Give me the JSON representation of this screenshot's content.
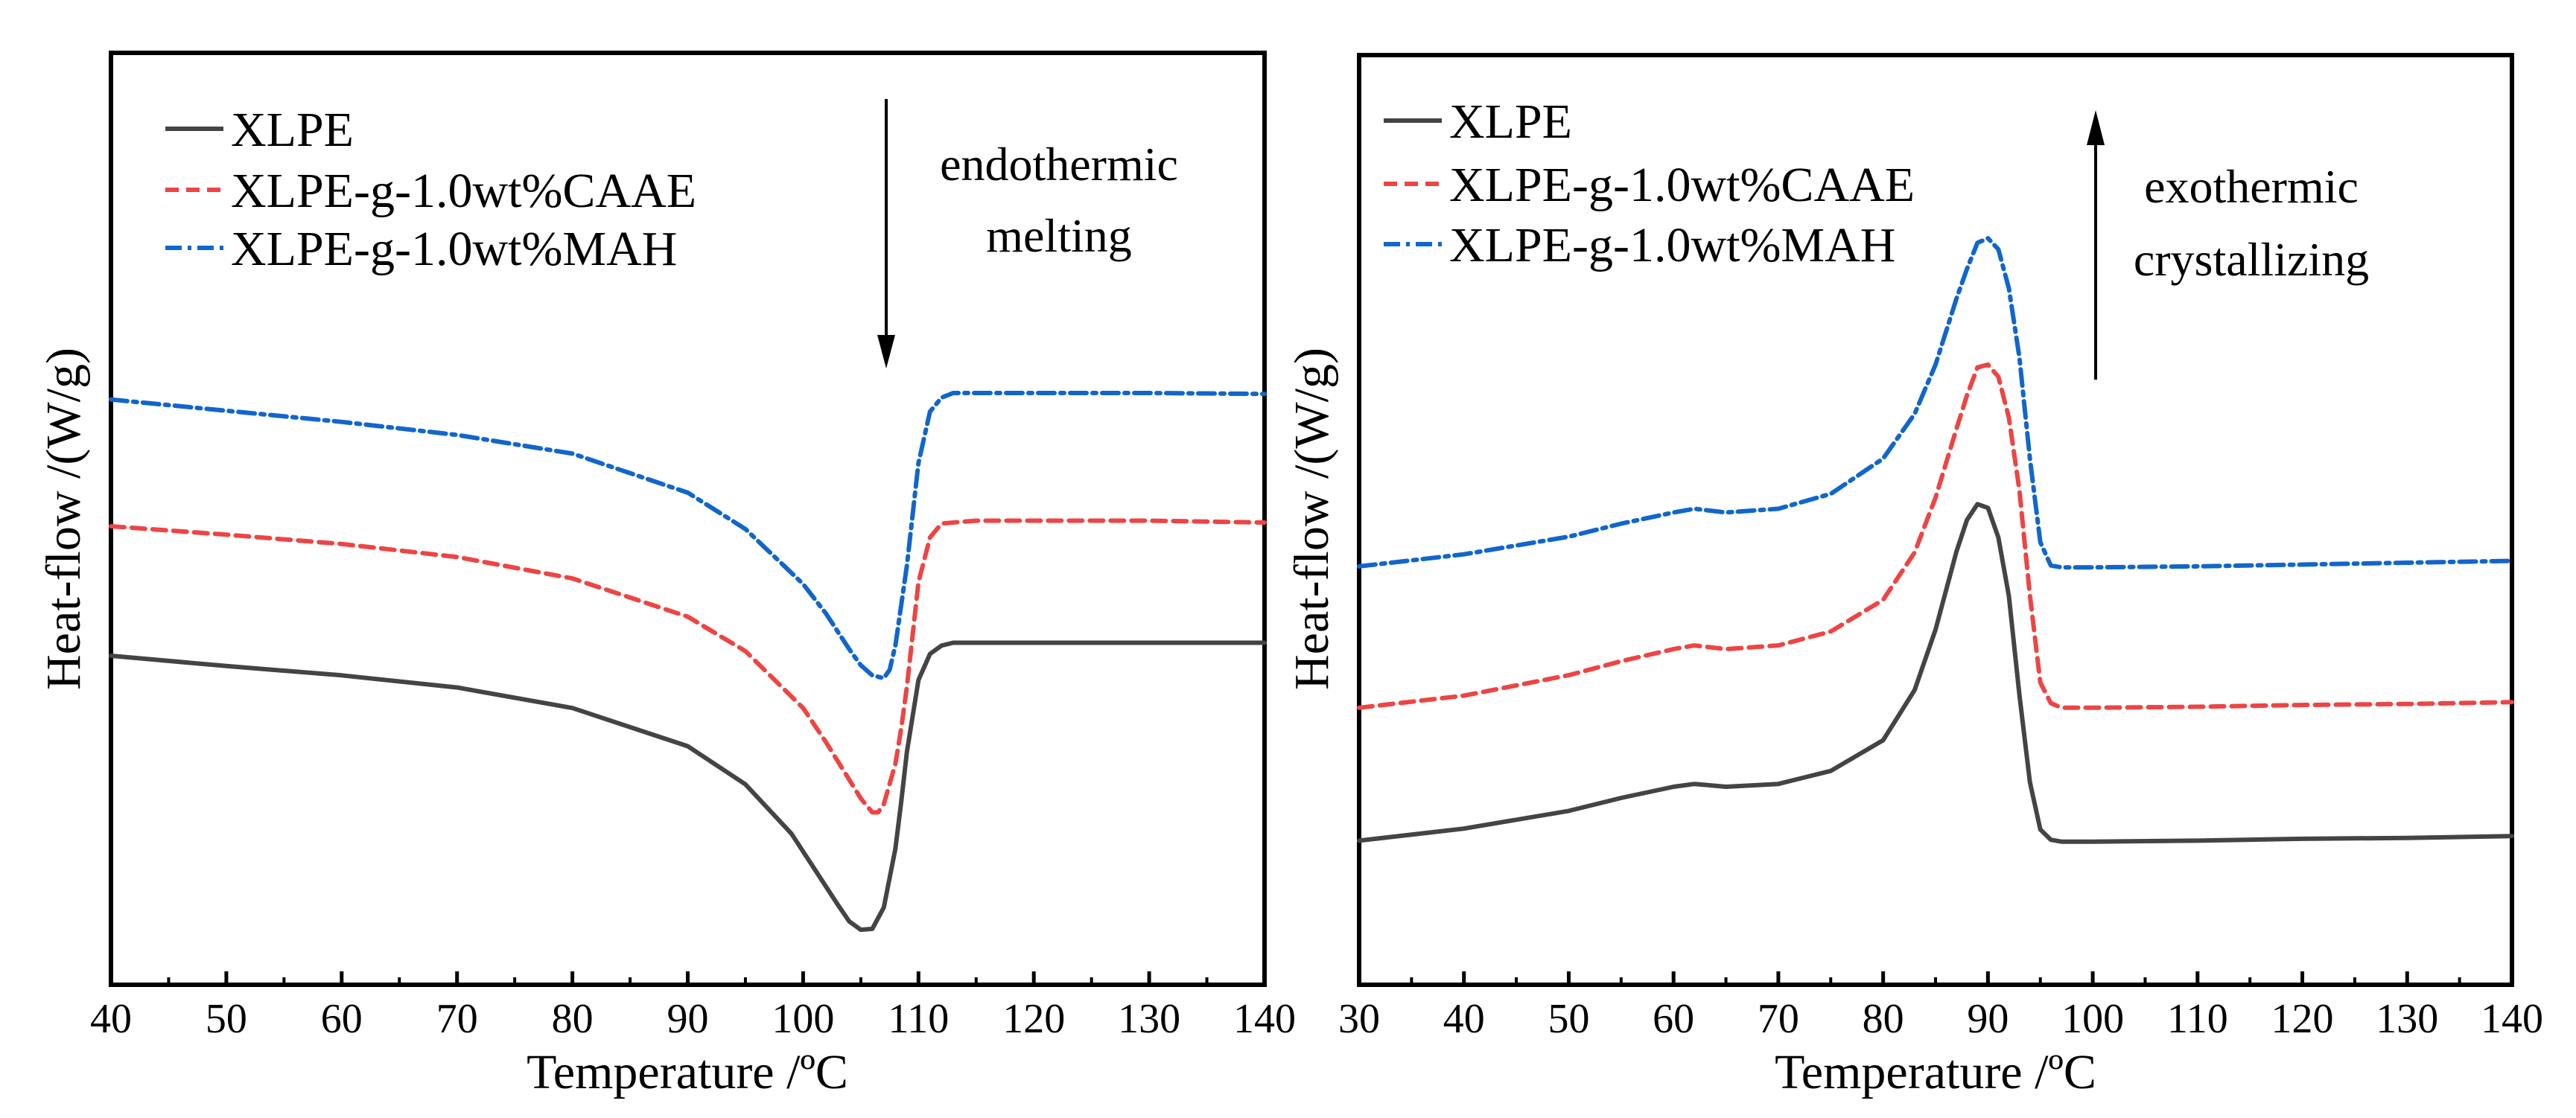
{
  "chart_data": [
    {
      "type": "line",
      "id": "melting",
      "title": "",
      "xlabel": "Temperature /ºC",
      "ylabel": "Heat-flow /(W/g)",
      "xlim": [
        40,
        140
      ],
      "xticks": [
        40,
        50,
        60,
        70,
        80,
        90,
        100,
        110,
        120,
        130,
        140
      ],
      "ylim": [
        0,
        100
      ],
      "y_ticks_shown": false,
      "grid": false,
      "legend_position": "top-left",
      "annotation": {
        "lines": [
          "endothermic",
          "melting"
        ],
        "arrow": "down"
      },
      "series": [
        {
          "name": "XLPE",
          "color": "#444444",
          "style": "solid",
          "x": [
            40,
            50,
            60,
            70,
            80,
            90,
            95,
            99,
            101,
            103,
            104,
            105,
            106,
            107,
            108,
            108.5,
            109,
            110,
            111,
            112,
            113,
            115,
            120,
            130,
            140
          ],
          "y": [
            35.3,
            34.2,
            33.2,
            31.9,
            29.7,
            25.6,
            21.5,
            16.2,
            12.4,
            8.6,
            6.8,
            5.9,
            6.0,
            8.3,
            14.6,
            19.6,
            25.0,
            32.7,
            35.5,
            36.4,
            36.7,
            36.7,
            36.7,
            36.7,
            36.7
          ]
        },
        {
          "name": "XLPE-g-1.0wt%CAAE",
          "color": "#ee4444",
          "style": "dashed",
          "x": [
            40,
            50,
            60,
            70,
            80,
            90,
            95,
            100,
            102,
            104,
            105,
            106,
            106.5,
            107,
            108,
            108.5,
            109,
            110,
            111,
            112,
            115,
            120,
            130,
            140
          ],
          "y": [
            49.2,
            48.3,
            47.3,
            45.9,
            43.6,
            39.5,
            35.8,
            29.7,
            26.0,
            22.0,
            20.0,
            18.5,
            18.5,
            19.4,
            23.7,
            27.5,
            32.0,
            43.2,
            48.0,
            49.5,
            49.8,
            49.8,
            49.8,
            49.6
          ]
        },
        {
          "name": "XLPE-g-1.0wt%MAH",
          "color": "#1166cc",
          "style": "dashdot",
          "x": [
            40,
            50,
            60,
            70,
            80,
            90,
            95,
            100,
            102,
            104,
            105,
            106,
            107,
            107.5,
            108,
            109,
            110,
            111,
            112,
            113,
            115,
            120,
            130,
            140
          ],
          "y": [
            62.8,
            61.6,
            60.4,
            59.0,
            57.0,
            52.8,
            48.9,
            43.0,
            39.8,
            36.0,
            34.3,
            33.2,
            32.9,
            33.8,
            36.4,
            45.0,
            56.0,
            61.5,
            63.0,
            63.5,
            63.5,
            63.5,
            63.5,
            63.4
          ]
        }
      ]
    },
    {
      "type": "line",
      "id": "crystallization",
      "title": "",
      "xlabel": "Temperature /ºC",
      "ylabel": "Heat-flow /(W/g)",
      "xlim": [
        30,
        140
      ],
      "xticks": [
        30,
        40,
        50,
        60,
        70,
        80,
        90,
        100,
        110,
        120,
        130,
        140
      ],
      "ylim": [
        0,
        100
      ],
      "y_ticks_shown": false,
      "grid": false,
      "legend_position": "top-left",
      "annotation": {
        "lines": [
          "exothermic",
          "crystallizing"
        ],
        "arrow": "up"
      },
      "series": [
        {
          "name": "XLPE",
          "color": "#444444",
          "style": "solid",
          "x": [
            30,
            40,
            50,
            55,
            60,
            62,
            65,
            70,
            75,
            80,
            83,
            85,
            87,
            88,
            89,
            90,
            91,
            92,
            93,
            94,
            95,
            96,
            97,
            100,
            110,
            120,
            130,
            140
          ],
          "y": [
            15.5,
            16.8,
            18.7,
            20.1,
            21.3,
            21.6,
            21.3,
            21.6,
            23.0,
            26.3,
            31.7,
            38.2,
            46.6,
            50.0,
            51.7,
            51.3,
            48.1,
            41.8,
            31.2,
            21.8,
            16.7,
            15.6,
            15.4,
            15.4,
            15.5,
            15.7,
            15.8,
            16.0
          ]
        },
        {
          "name": "XLPE-g-1.0wt%CAAE",
          "color": "#ee4444",
          "style": "dashed",
          "x": [
            30,
            40,
            50,
            55,
            60,
            62,
            65,
            70,
            75,
            80,
            83,
            85,
            87,
            88,
            89,
            90,
            91,
            92,
            93,
            94,
            95,
            96,
            97,
            100,
            110,
            120,
            130,
            140
          ],
          "y": [
            29.8,
            31.1,
            33.3,
            34.8,
            36.1,
            36.5,
            36.1,
            36.5,
            38.0,
            41.4,
            46.5,
            52.4,
            59.8,
            63.4,
            66.4,
            66.7,
            65.4,
            61.0,
            53.2,
            41.9,
            32.5,
            30.3,
            29.8,
            29.8,
            29.9,
            30.1,
            30.2,
            30.4
          ]
        },
        {
          "name": "XLPE-g-1.0wt%MAH",
          "color": "#1166cc",
          "style": "dashdot",
          "x": [
            30,
            40,
            50,
            55,
            60,
            62,
            65,
            70,
            75,
            80,
            83,
            85,
            87,
            88,
            89,
            90,
            91,
            92,
            93,
            94,
            95,
            96,
            97,
            100,
            110,
            120,
            130,
            140
          ],
          "y": [
            45.0,
            46.3,
            48.2,
            49.6,
            50.8,
            51.2,
            50.8,
            51.2,
            52.8,
            56.6,
            61.4,
            66.7,
            73.8,
            77.0,
            79.8,
            80.3,
            79.1,
            74.9,
            67.5,
            56.6,
            47.6,
            45.1,
            44.9,
            44.9,
            45.0,
            45.2,
            45.4,
            45.6
          ]
        }
      ]
    }
  ]
}
